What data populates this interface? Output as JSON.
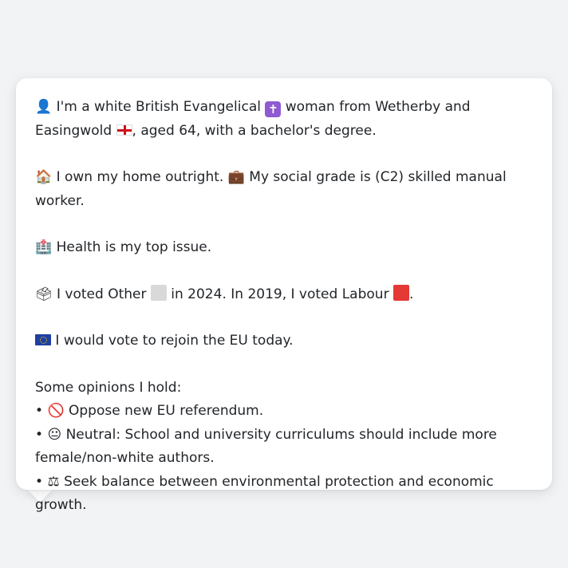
{
  "profile": {
    "intro": {
      "icon": "person-silhouette-icon",
      "text_a": " I'm a white British Evangelical ",
      "religion_icon": "latin-cross-icon",
      "text_b": " woman from Wetherby and Easingwold",
      "region_icon": "england-flag-icon",
      "text_c": ", aged 64, with a bachelor's degree."
    },
    "home": {
      "home_icon": "house-icon",
      "text_a": " I own my home outright. ",
      "work_icon": "briefcase-icon",
      "text_b": " My social grade is (C2) skilled manual worker."
    },
    "issue": {
      "icon": "hospital-icon",
      "text": " Health is my top issue."
    },
    "vote": {
      "icon": "ballot-box-icon",
      "text_a": " I voted Other ",
      "other_color": "#d9d9d9",
      "text_b": " in 2024. In 2019, I voted Labour ",
      "labour_color": "#e53935",
      "text_c": "."
    },
    "eu": {
      "icon": "eu-flag-icon",
      "text": " I would vote to rejoin the EU today."
    },
    "opinions": {
      "heading": "Some opinions I hold:",
      "items": [
        {
          "bullet": "•",
          "icon": "no-entry-icon",
          "text": " Oppose new EU referendum."
        },
        {
          "bullet": "•",
          "icon": "neutral-face-icon",
          "text": " Neutral: School and university curriculums should include more female/non-white authors."
        },
        {
          "bullet": "•",
          "icon": "balance-scale-icon",
          "text": " Seek balance between environmental protection and economic growth."
        }
      ]
    }
  }
}
